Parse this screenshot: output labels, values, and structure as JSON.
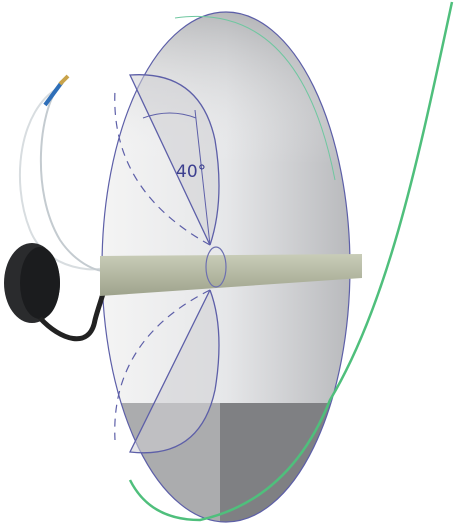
{
  "angle_label": "40°"
}
